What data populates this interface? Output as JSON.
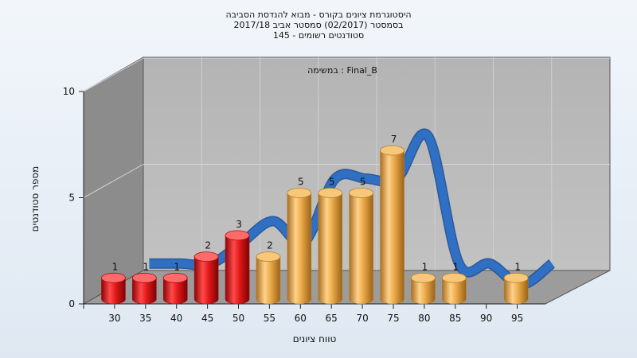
{
  "chart_data": {
    "type": "bar",
    "title_lines": [
      "היסטוגרמת ציונים בקורס - מבוא להנדסת הסביבה",
      "בסמסטר  (02/2017)  סמסטר אביב 2017/18",
      "סטודנטים רשומים - 145"
    ],
    "subtitle": "במשימה : Final_B",
    "xlabel": "טווח ציונים",
    "ylabel": "מספר סטודנטים",
    "ylim": [
      0,
      10
    ],
    "yticks": [
      "0",
      "5",
      "10"
    ],
    "categories": [
      "30",
      "35",
      "40",
      "45",
      "50",
      "55",
      "60",
      "65",
      "70",
      "75",
      "80",
      "85",
      "90",
      "95"
    ],
    "values": [
      1,
      1,
      1,
      2,
      3,
      2,
      5,
      5,
      5,
      7,
      1,
      1,
      0,
      1
    ],
    "value_labels": [
      "1",
      "1",
      "1",
      "2",
      "3",
      "2",
      "5",
      "5",
      "5",
      "7",
      "1",
      "1",
      "",
      "1"
    ],
    "bar_colors": [
      "red",
      "red",
      "red",
      "red",
      "red",
      "orange",
      "orange",
      "orange",
      "orange",
      "orange",
      "orange",
      "orange",
      "orange",
      "orange"
    ],
    "colors": {
      "red": "#e01818",
      "orange": "#e8a848",
      "trend": "#2f6fc4"
    },
    "trend_line": true,
    "grid": true
  }
}
